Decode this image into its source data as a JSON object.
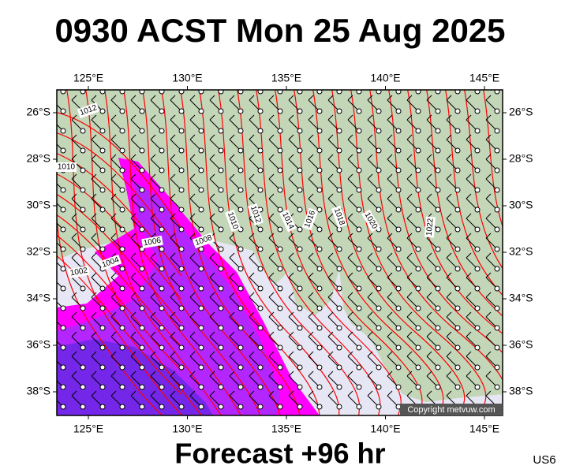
{
  "header": {
    "title": "0930 ACST Mon 25 Aug 2025"
  },
  "map": {
    "lon_ticks": [
      {
        "value": 125,
        "label": "125°E"
      },
      {
        "value": 130,
        "label": "130°E"
      },
      {
        "value": 135,
        "label": "135°E"
      },
      {
        "value": 140,
        "label": "140°E"
      },
      {
        "value": 145,
        "label": "145°E"
      }
    ],
    "lat_ticks": [
      {
        "value": -26,
        "label": "26°S"
      },
      {
        "value": -28,
        "label": "28°S"
      },
      {
        "value": -30,
        "label": "30°S"
      },
      {
        "value": -32,
        "label": "32°S"
      },
      {
        "value": -34,
        "label": "34°S"
      },
      {
        "value": -36,
        "label": "36°S"
      },
      {
        "value": -38,
        "label": "38°S"
      }
    ],
    "isobar_labels": [
      "1012",
      "1010",
      "1006",
      "1008",
      "1004",
      "1002",
      "1010",
      "1012",
      "1014",
      "1016",
      "1018",
      "1020",
      "1022"
    ],
    "copyright": "Copyright metvuw.com"
  },
  "footer": {
    "subtitle": "Forecast +96 hr",
    "code": "US6"
  }
}
